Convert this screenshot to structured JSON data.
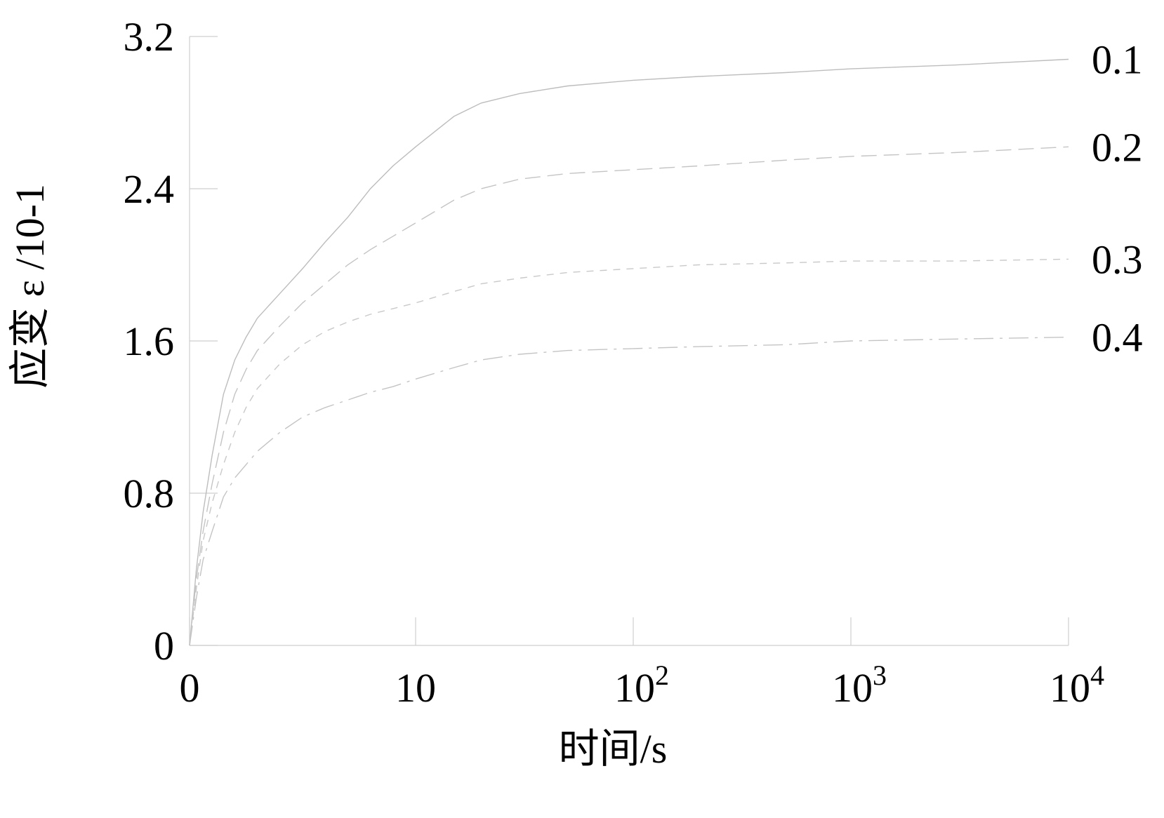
{
  "chart_data": {
    "type": "line",
    "title": "",
    "xlabel": "时间/s",
    "ylabel": "应变 ε /10-1",
    "x_scale": "log-like",
    "xlim": [
      0,
      10000
    ],
    "ylim": [
      0,
      3.2
    ],
    "x_ticks": [
      {
        "value": 0,
        "base": "0",
        "exp": ""
      },
      {
        "value": 10,
        "base": "10",
        "exp": ""
      },
      {
        "value": 100,
        "base": "10",
        "exp": "2"
      },
      {
        "value": 1000,
        "base": "10",
        "exp": "3"
      },
      {
        "value": 10000,
        "base": "10",
        "exp": "4"
      }
    ],
    "y_ticks": [
      {
        "value": 0,
        "label": "0"
      },
      {
        "value": 0.8,
        "label": "0.8"
      },
      {
        "value": 1.6,
        "label": "1.6"
      },
      {
        "value": 2.4,
        "label": "2.4"
      },
      {
        "value": 3.2,
        "label": "3.2"
      }
    ],
    "grid": false,
    "series": [
      {
        "name": "0.1",
        "color": "#bdbdbd",
        "dash": "",
        "points": [
          [
            0,
            0
          ],
          [
            0.3,
            0.4
          ],
          [
            0.6,
            0.7
          ],
          [
            1,
            1.0
          ],
          [
            1.5,
            1.32
          ],
          [
            2,
            1.5
          ],
          [
            2.5,
            1.62
          ],
          [
            3,
            1.72
          ],
          [
            4,
            1.85
          ],
          [
            5,
            1.98
          ],
          [
            6,
            2.12
          ],
          [
            7,
            2.25
          ],
          [
            8,
            2.4
          ],
          [
            9,
            2.52
          ],
          [
            10,
            2.62
          ],
          [
            15,
            2.78
          ],
          [
            20,
            2.85
          ],
          [
            30,
            2.9
          ],
          [
            50,
            2.94
          ],
          [
            100,
            2.97
          ],
          [
            200,
            2.99
          ],
          [
            500,
            3.01
          ],
          [
            1000,
            3.03
          ],
          [
            3000,
            3.05
          ],
          [
            10000,
            3.08
          ]
        ]
      },
      {
        "name": "0.2",
        "color": "#c4c4c4",
        "dash": "22,10",
        "points": [
          [
            0,
            0
          ],
          [
            0.3,
            0.35
          ],
          [
            0.6,
            0.6
          ],
          [
            1,
            0.85
          ],
          [
            1.5,
            1.12
          ],
          [
            2,
            1.32
          ],
          [
            2.5,
            1.45
          ],
          [
            3,
            1.55
          ],
          [
            4,
            1.68
          ],
          [
            5,
            1.8
          ],
          [
            6,
            1.9
          ],
          [
            7,
            2.0
          ],
          [
            8,
            2.08
          ],
          [
            9,
            2.15
          ],
          [
            10,
            2.22
          ],
          [
            15,
            2.34
          ],
          [
            20,
            2.4
          ],
          [
            30,
            2.45
          ],
          [
            50,
            2.48
          ],
          [
            100,
            2.5
          ],
          [
            200,
            2.52
          ],
          [
            500,
            2.55
          ],
          [
            1000,
            2.57
          ],
          [
            3000,
            2.59
          ],
          [
            10000,
            2.62
          ]
        ]
      },
      {
        "name": "0.3",
        "color": "#c9c9c9",
        "dash": "10,9",
        "points": [
          [
            0,
            0
          ],
          [
            0.3,
            0.3
          ],
          [
            0.6,
            0.55
          ],
          [
            1,
            0.75
          ],
          [
            1.5,
            0.95
          ],
          [
            2,
            1.12
          ],
          [
            2.5,
            1.25
          ],
          [
            3,
            1.35
          ],
          [
            4,
            1.48
          ],
          [
            5,
            1.58
          ],
          [
            6,
            1.65
          ],
          [
            7,
            1.7
          ],
          [
            8,
            1.74
          ],
          [
            9,
            1.77
          ],
          [
            10,
            1.8
          ],
          [
            15,
            1.86
          ],
          [
            20,
            1.9
          ],
          [
            30,
            1.93
          ],
          [
            50,
            1.96
          ],
          [
            100,
            1.98
          ],
          [
            200,
            2.0
          ],
          [
            500,
            2.01
          ],
          [
            1000,
            2.02
          ],
          [
            3000,
            2.02
          ],
          [
            10000,
            2.03
          ]
        ]
      },
      {
        "name": "0.4",
        "color": "#c4c4c4",
        "dash": "28,9,4,9",
        "points": [
          [
            0,
            0
          ],
          [
            0.3,
            0.25
          ],
          [
            0.6,
            0.45
          ],
          [
            1,
            0.6
          ],
          [
            1.5,
            0.78
          ],
          [
            2,
            0.88
          ],
          [
            2.5,
            0.95
          ],
          [
            3,
            1.02
          ],
          [
            4,
            1.12
          ],
          [
            5,
            1.2
          ],
          [
            6,
            1.25
          ],
          [
            7,
            1.29
          ],
          [
            8,
            1.33
          ],
          [
            9,
            1.36
          ],
          [
            10,
            1.4
          ],
          [
            15,
            1.46
          ],
          [
            20,
            1.5
          ],
          [
            30,
            1.53
          ],
          [
            50,
            1.55
          ],
          [
            100,
            1.56
          ],
          [
            200,
            1.57
          ],
          [
            500,
            1.58
          ],
          [
            1000,
            1.6
          ],
          [
            3000,
            1.61
          ],
          [
            10000,
            1.62
          ]
        ]
      }
    ]
  }
}
